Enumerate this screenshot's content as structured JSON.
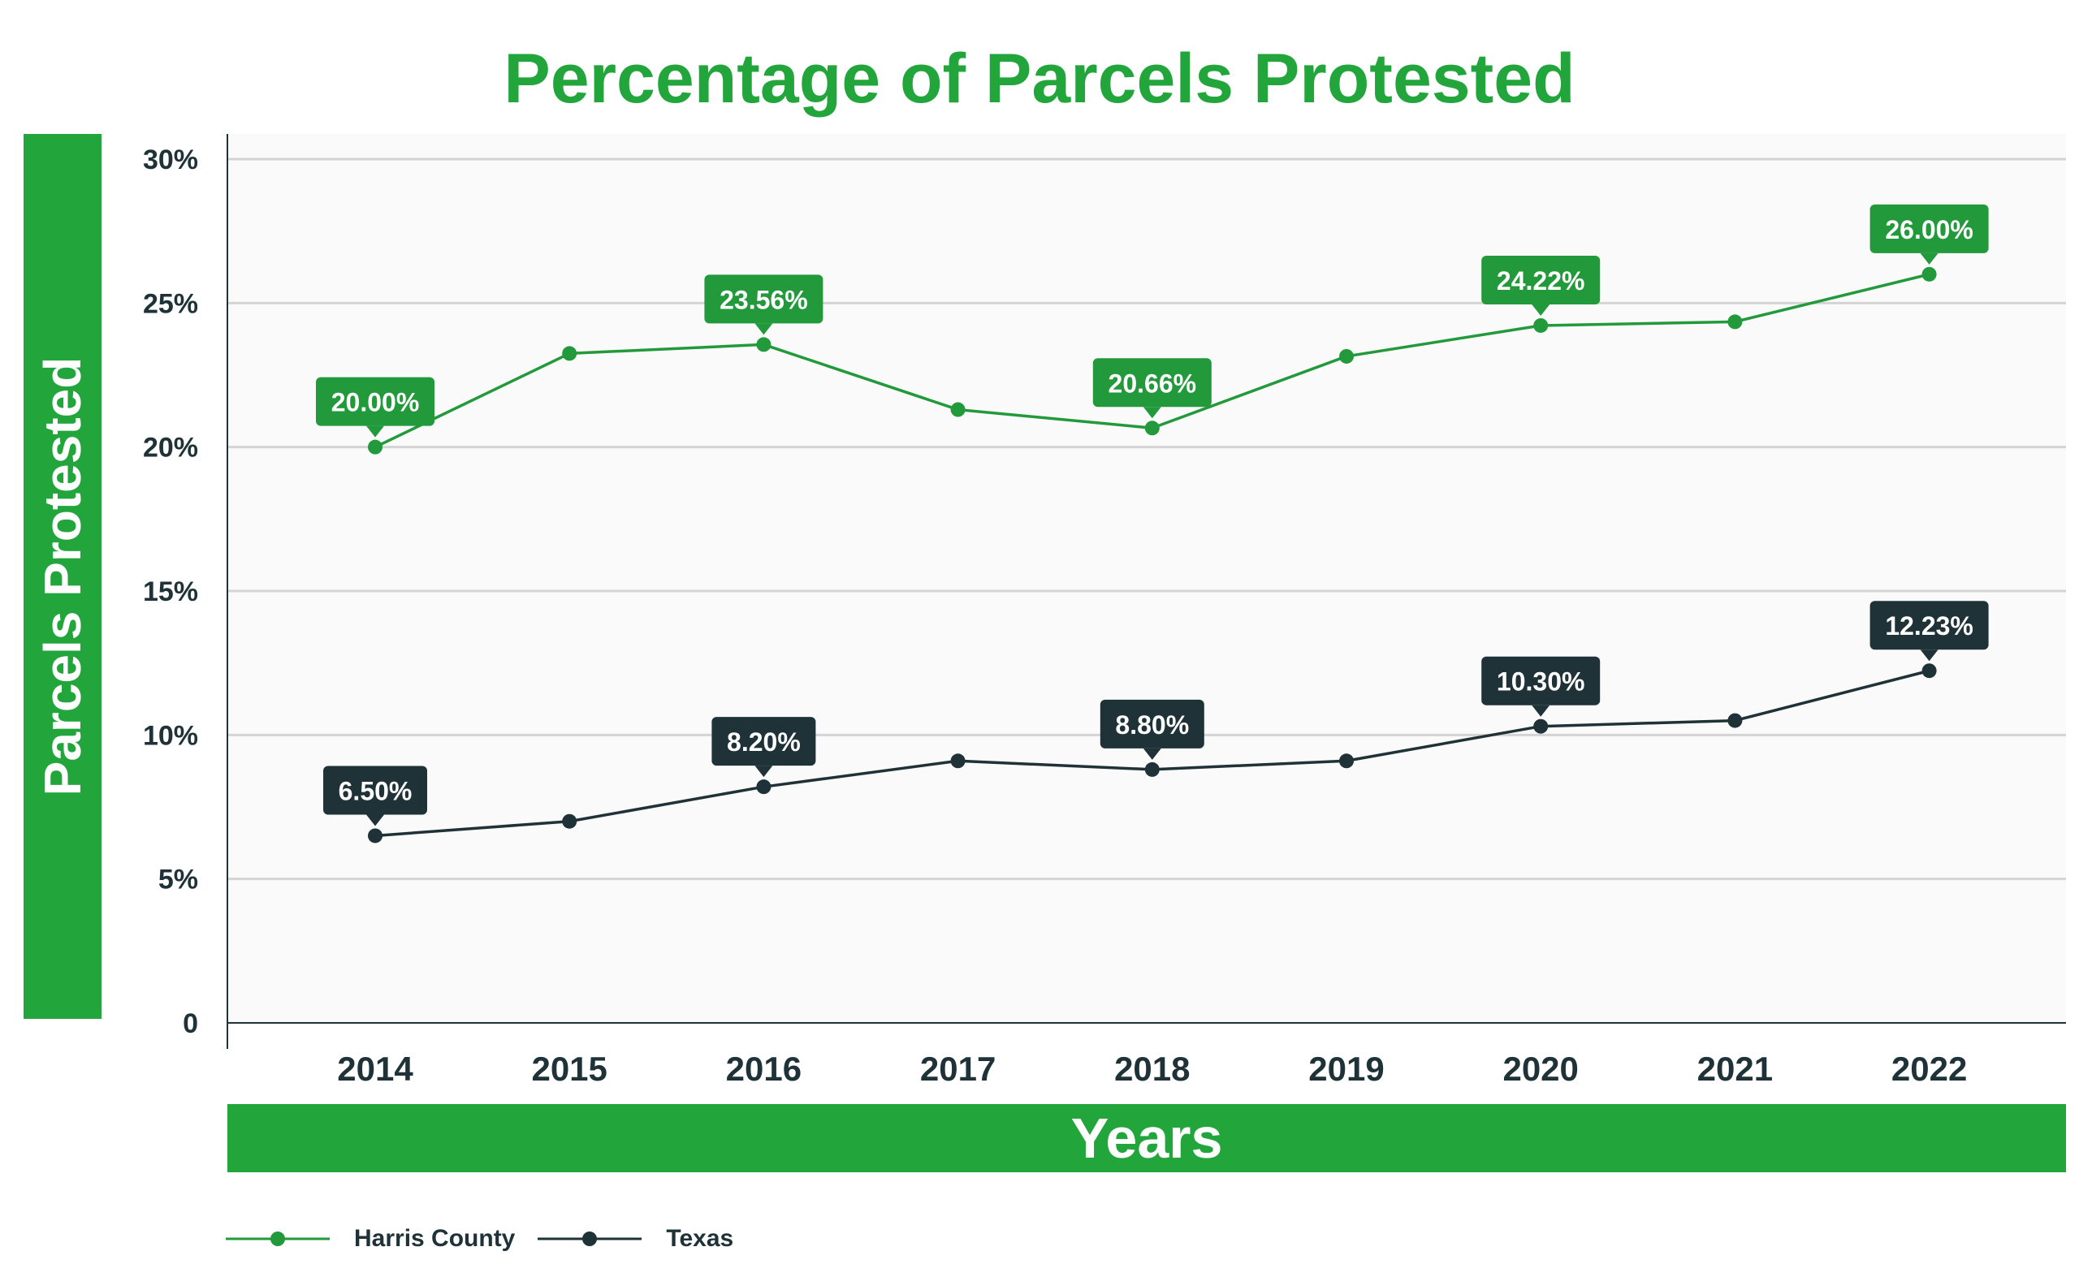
{
  "chart_data": {
    "type": "line",
    "title": "Percentage of Parcels Protested",
    "xlabel": "Years",
    "ylabel": "Parcels Protested",
    "categories": [
      "2014",
      "2015",
      "2016",
      "2017",
      "2018",
      "2019",
      "2020",
      "2021",
      "2022"
    ],
    "y_ticks": [
      "0",
      "5%",
      "10%",
      "15%",
      "20%",
      "25%",
      "30%"
    ],
    "ylim": [
      0,
      30
    ],
    "grid": true,
    "legend_position": "bottom-left",
    "series": [
      {
        "name": "Harris County",
        "color": "#22993a",
        "values": [
          20.0,
          23.25,
          23.56,
          21.3,
          20.66,
          23.15,
          24.22,
          24.35,
          26.0
        ],
        "labels": [
          "20.00%",
          null,
          "23.56%",
          null,
          "20.66%",
          null,
          "24.22%",
          null,
          "26.00%"
        ]
      },
      {
        "name": "Texas",
        "color": "#1e3238",
        "values": [
          6.5,
          7.0,
          8.2,
          9.1,
          8.8,
          9.1,
          10.3,
          10.5,
          12.23
        ],
        "labels": [
          "6.50%",
          null,
          "8.20%",
          null,
          "8.80%",
          null,
          "10.30%",
          null,
          "12.23%"
        ]
      }
    ]
  },
  "legend": [
    {
      "name": "Harris County",
      "color": "#22993a"
    },
    {
      "name": "Texas",
      "color": "#1e3238"
    }
  ]
}
